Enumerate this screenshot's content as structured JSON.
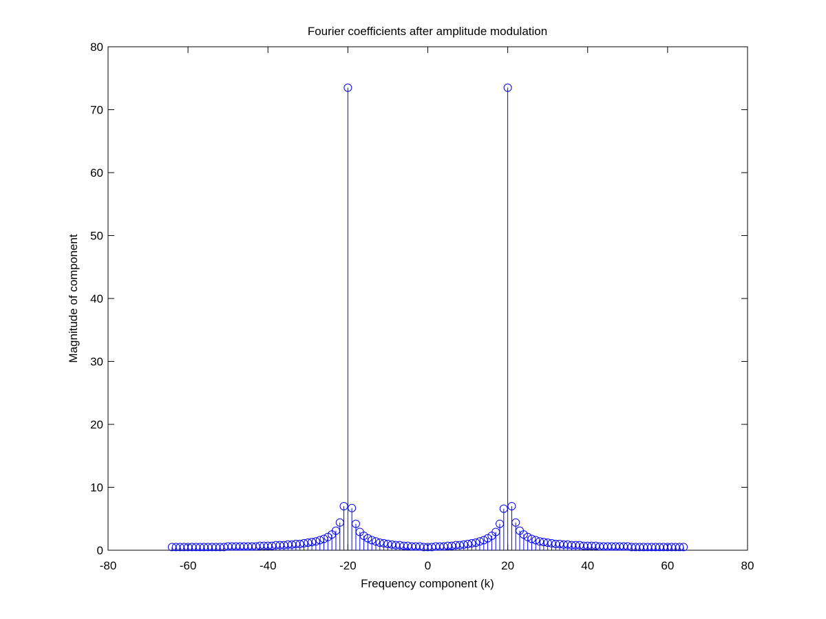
{
  "chart_data": {
    "type": "stem",
    "title": "Fourier coefficients after amplitude modulation",
    "x_label": "Frequency component (k)",
    "y_label": "Magnitude of component",
    "color": "#0000ff",
    "x": [
      -64,
      -63,
      -62,
      -61,
      -60,
      -59,
      -58,
      -57,
      -56,
      -55,
      -54,
      -53,
      -52,
      -51,
      -50,
      -49,
      -48,
      -47,
      -46,
      -45,
      -44,
      -43,
      -42,
      -41,
      -40,
      -39,
      -38,
      -37,
      -36,
      -35,
      -34,
      -33,
      -32,
      -31,
      -30,
      -29,
      -28,
      -27,
      -26,
      -25,
      -24,
      -23,
      -22,
      -21,
      -20,
      -19,
      -18,
      -17,
      -16,
      -15,
      -14,
      -13,
      -12,
      -11,
      -10,
      -9,
      -8,
      -7,
      -6,
      -5,
      -4,
      -3,
      -2,
      -1,
      0,
      1,
      2,
      3,
      4,
      5,
      6,
      7,
      8,
      9,
      10,
      11,
      12,
      13,
      14,
      15,
      16,
      17,
      18,
      19,
      20,
      21,
      22,
      23,
      24,
      25,
      26,
      27,
      28,
      29,
      30,
      31,
      32,
      33,
      34,
      35,
      36,
      37,
      38,
      39,
      40,
      41,
      42,
      43,
      44,
      45,
      46,
      47,
      48,
      49,
      50,
      51,
      52,
      53,
      54,
      55,
      56,
      57,
      58,
      59,
      60,
      61,
      62,
      63,
      64
    ],
    "values": [
      0.5,
      0.5,
      0.5,
      0.5,
      0.5,
      0.5,
      0.5,
      0.5,
      0.5,
      0.5,
      0.5,
      0.5,
      0.5,
      0.5,
      0.6,
      0.6,
      0.6,
      0.6,
      0.6,
      0.6,
      0.6,
      0.6,
      0.7,
      0.7,
      0.7,
      0.7,
      0.8,
      0.8,
      0.8,
      0.9,
      0.9,
      1.0,
      1.0,
      1.1,
      1.2,
      1.3,
      1.4,
      1.6,
      1.8,
      2.1,
      2.5,
      3.1,
      4.4,
      7.0,
      73.5,
      6.7,
      4.2,
      2.9,
      2.3,
      1.9,
      1.6,
      1.4,
      1.2,
      1.1,
      1.0,
      0.9,
      0.8,
      0.8,
      0.7,
      0.7,
      0.6,
      0.6,
      0.6,
      0.5,
      0.5,
      0.5,
      0.6,
      0.6,
      0.6,
      0.7,
      0.7,
      0.8,
      0.8,
      0.9,
      1.0,
      1.1,
      1.2,
      1.4,
      1.6,
      1.9,
      2.3,
      2.9,
      4.2,
      6.6,
      73.5,
      7.0,
      4.4,
      3.1,
      2.5,
      2.1,
      1.8,
      1.6,
      1.4,
      1.3,
      1.2,
      1.1,
      1.0,
      1.0,
      0.9,
      0.9,
      0.8,
      0.8,
      0.8,
      0.7,
      0.7,
      0.7,
      0.7,
      0.6,
      0.6,
      0.6,
      0.6,
      0.6,
      0.6,
      0.6,
      0.6,
      0.5,
      0.5,
      0.5,
      0.5,
      0.5,
      0.5,
      0.5,
      0.5,
      0.5,
      0.5,
      0.5,
      0.5,
      0.5,
      0.5
    ],
    "xlim": [
      -80,
      80
    ],
    "xticks": [
      -80,
      -60,
      -40,
      -20,
      0,
      20,
      40,
      60,
      80
    ],
    "ylim": [
      0,
      80
    ],
    "yticks": [
      0,
      10,
      20,
      30,
      40,
      50,
      60,
      70,
      80
    ]
  }
}
